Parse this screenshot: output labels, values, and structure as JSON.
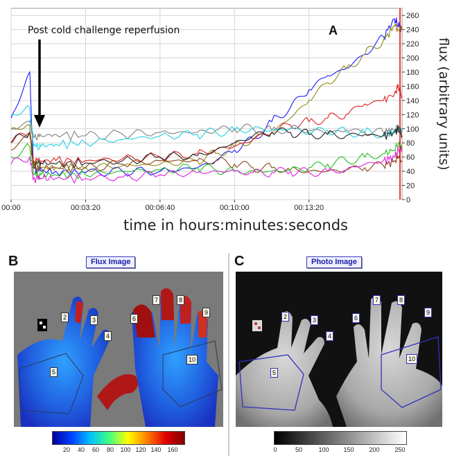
{
  "chart_data": {
    "type": "line",
    "panel_label": "A",
    "annotation": "Post cold challenge reperfusion",
    "xlabel": "time in hours:minutes:seconds",
    "ylabel": "flux (arbitrary units)",
    "x_ticks": [
      "00:00",
      "00:03:20",
      "00:06:40",
      "00:10:00",
      "00:13:20"
    ],
    "y_ticks": [
      0,
      20,
      40,
      60,
      80,
      100,
      120,
      140,
      160,
      180,
      200,
      220,
      240,
      260
    ],
    "ylim": [
      0,
      270
    ],
    "x_unit": "seconds",
    "xlim": [
      0,
      1050
    ],
    "grid": true,
    "series": [
      {
        "color": "#1a1aff",
        "x": [
          0,
          50,
          60,
          80,
          120,
          200,
          300,
          400,
          500,
          550,
          600,
          650,
          700,
          750,
          800,
          850,
          900,
          950,
          1000,
          1030,
          1040,
          1050
        ],
        "values": [
          115,
          180,
          45,
          40,
          40,
          38,
          40,
          40,
          45,
          55,
          70,
          85,
          110,
          130,
          155,
          175,
          185,
          205,
          230,
          255,
          245,
          240
        ]
      },
      {
        "color": "#8b8b1a",
        "x": [
          0,
          50,
          60,
          80,
          120,
          200,
          300,
          400,
          500,
          550,
          600,
          650,
          700,
          750,
          800,
          850,
          900,
          950,
          1000,
          1030,
          1040,
          1050
        ],
        "values": [
          100,
          105,
          50,
          45,
          45,
          45,
          48,
          50,
          55,
          65,
          75,
          85,
          95,
          115,
          140,
          165,
          185,
          205,
          225,
          245,
          240,
          240
        ]
      },
      {
        "color": "#e02020",
        "x": [
          0,
          50,
          60,
          80,
          120,
          200,
          300,
          400,
          500,
          550,
          600,
          650,
          700,
          750,
          800,
          850,
          900,
          950,
          1000,
          1030,
          1040,
          1050
        ],
        "values": [
          80,
          95,
          55,
          55,
          55,
          55,
          58,
          60,
          65,
          70,
          75,
          85,
          95,
          105,
          110,
          115,
          120,
          135,
          140,
          150,
          160,
          145
        ]
      },
      {
        "color": "#808080",
        "x": [
          0,
          50,
          60,
          80,
          120,
          200,
          300,
          400,
          500,
          550,
          600,
          650,
          700,
          750,
          800,
          850,
          900,
          950,
          1000,
          1030,
          1040,
          1050
        ],
        "values": [
          100,
          110,
          88,
          90,
          92,
          90,
          92,
          95,
          95,
          98,
          100,
          100,
          98,
          100,
          98,
          95,
          98,
          95,
          95,
          98,
          100,
          95
        ]
      },
      {
        "color": "#20d0e0",
        "x": [
          0,
          50,
          60,
          80,
          120,
          200,
          300,
          400,
          500,
          550,
          600,
          650,
          700,
          750,
          800,
          850,
          900,
          950,
          1000,
          1030,
          1040,
          1050
        ],
        "values": [
          120,
          130,
          75,
          75,
          78,
          80,
          85,
          90,
          92,
          95,
          98,
          100,
          98,
          100,
          95,
          98,
          95,
          95,
          92,
          95,
          100,
          95
        ]
      },
      {
        "color": "#202020",
        "x": [
          0,
          50,
          60,
          80,
          120,
          200,
          300,
          400,
          500,
          550,
          600,
          650,
          700,
          750,
          800,
          850,
          900,
          950,
          1000,
          1030,
          1040,
          1050
        ],
        "values": [
          80,
          95,
          50,
          52,
          50,
          52,
          55,
          60,
          62,
          70,
          80,
          90,
          95,
          95,
          92,
          92,
          90,
          92,
          90,
          95,
          100,
          90
        ]
      },
      {
        "color": "#8b4513",
        "x": [
          0,
          50,
          60,
          80,
          120,
          200,
          300,
          400,
          500,
          550,
          600,
          650,
          700,
          750,
          800,
          850,
          900,
          950,
          1000,
          1030,
          1040,
          1050
        ],
        "values": [
          70,
          95,
          45,
          45,
          45,
          45,
          50,
          55,
          55,
          55,
          50,
          45,
          45,
          42,
          40,
          40,
          42,
          45,
          48,
          55,
          60,
          55
        ]
      },
      {
        "color": "#20c020",
        "x": [
          0,
          50,
          60,
          80,
          120,
          200,
          300,
          400,
          500,
          550,
          600,
          650,
          700,
          750,
          800,
          850,
          900,
          950,
          1000,
          1030,
          1040,
          1050
        ],
        "values": [
          60,
          75,
          35,
          35,
          35,
          35,
          40,
          42,
          45,
          42,
          40,
          40,
          40,
          42,
          45,
          50,
          55,
          60,
          65,
          70,
          80,
          70
        ]
      },
      {
        "color": "#e020e0",
        "x": [
          0,
          50,
          60,
          80,
          120,
          200,
          300,
          400,
          500,
          550,
          600,
          650,
          700,
          750,
          800,
          850,
          900,
          950,
          1000,
          1030,
          1040,
          1050
        ],
        "values": [
          50,
          60,
          30,
          30,
          30,
          30,
          32,
          35,
          38,
          40,
          40,
          38,
          38,
          40,
          38,
          40,
          42,
          50,
          55,
          60,
          70,
          70
        ]
      }
    ]
  },
  "panel_b": {
    "label": "B",
    "button": "Flux Image",
    "rois": [
      "2",
      "3",
      "4",
      "5",
      "6",
      "7",
      "8",
      "9",
      "10"
    ],
    "scale_ticks": [
      "20",
      "40",
      "60",
      "80",
      "100",
      "120",
      "140",
      "160"
    ]
  },
  "panel_c": {
    "label": "C",
    "button": "Photo Image",
    "rois": [
      "2",
      "3",
      "4",
      "5",
      "6",
      "7",
      "8",
      "9",
      "10"
    ],
    "scale_ticks": [
      "0",
      "50",
      "100",
      "150",
      "200",
      "250"
    ]
  }
}
